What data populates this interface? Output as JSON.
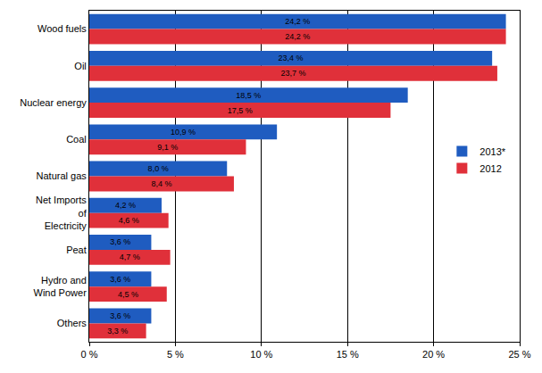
{
  "chart_data": {
    "type": "bar",
    "orientation": "horizontal",
    "categories": [
      "Wood fuels",
      "Oil",
      "Nuclear energy",
      "Coal",
      "Natural gas",
      "Net Imports of Electricity",
      "Peat",
      "Hydro and Wind Power",
      "Others"
    ],
    "series": [
      {
        "name": "2013*",
        "color": "#1f5cc0",
        "values": [
          24.2,
          23.4,
          18.5,
          10.9,
          8.0,
          4.2,
          3.6,
          3.6,
          3.6
        ],
        "value_labels": [
          "24,2 %",
          "23,4 %",
          "18,5 %",
          "10,9 %",
          "8,0 %",
          "4,2 %",
          "3,6 %",
          "3,6 %",
          "3,6 %"
        ]
      },
      {
        "name": "2012",
        "color": "#e0303a",
        "values": [
          24.2,
          23.7,
          17.5,
          9.1,
          8.4,
          4.6,
          4.7,
          4.5,
          3.3
        ],
        "value_labels": [
          "24,2 %",
          "23,7 %",
          "17,5 %",
          "9,1 %",
          "8,4 %",
          "4,6 %",
          "4,7 %",
          "4,5 %",
          "3,3 %"
        ]
      }
    ],
    "xlim": [
      0,
      25
    ],
    "xticks": [
      {
        "value": 0,
        "label": "0 %"
      },
      {
        "value": 5,
        "label": "5 %"
      },
      {
        "value": 10,
        "label": "10 %"
      },
      {
        "value": 15,
        "label": "15 %"
      },
      {
        "value": 20,
        "label": "20 %"
      },
      {
        "value": 25,
        "label": "25 %"
      }
    ],
    "grid": true,
    "legend": "right",
    "data_labels": true
  }
}
